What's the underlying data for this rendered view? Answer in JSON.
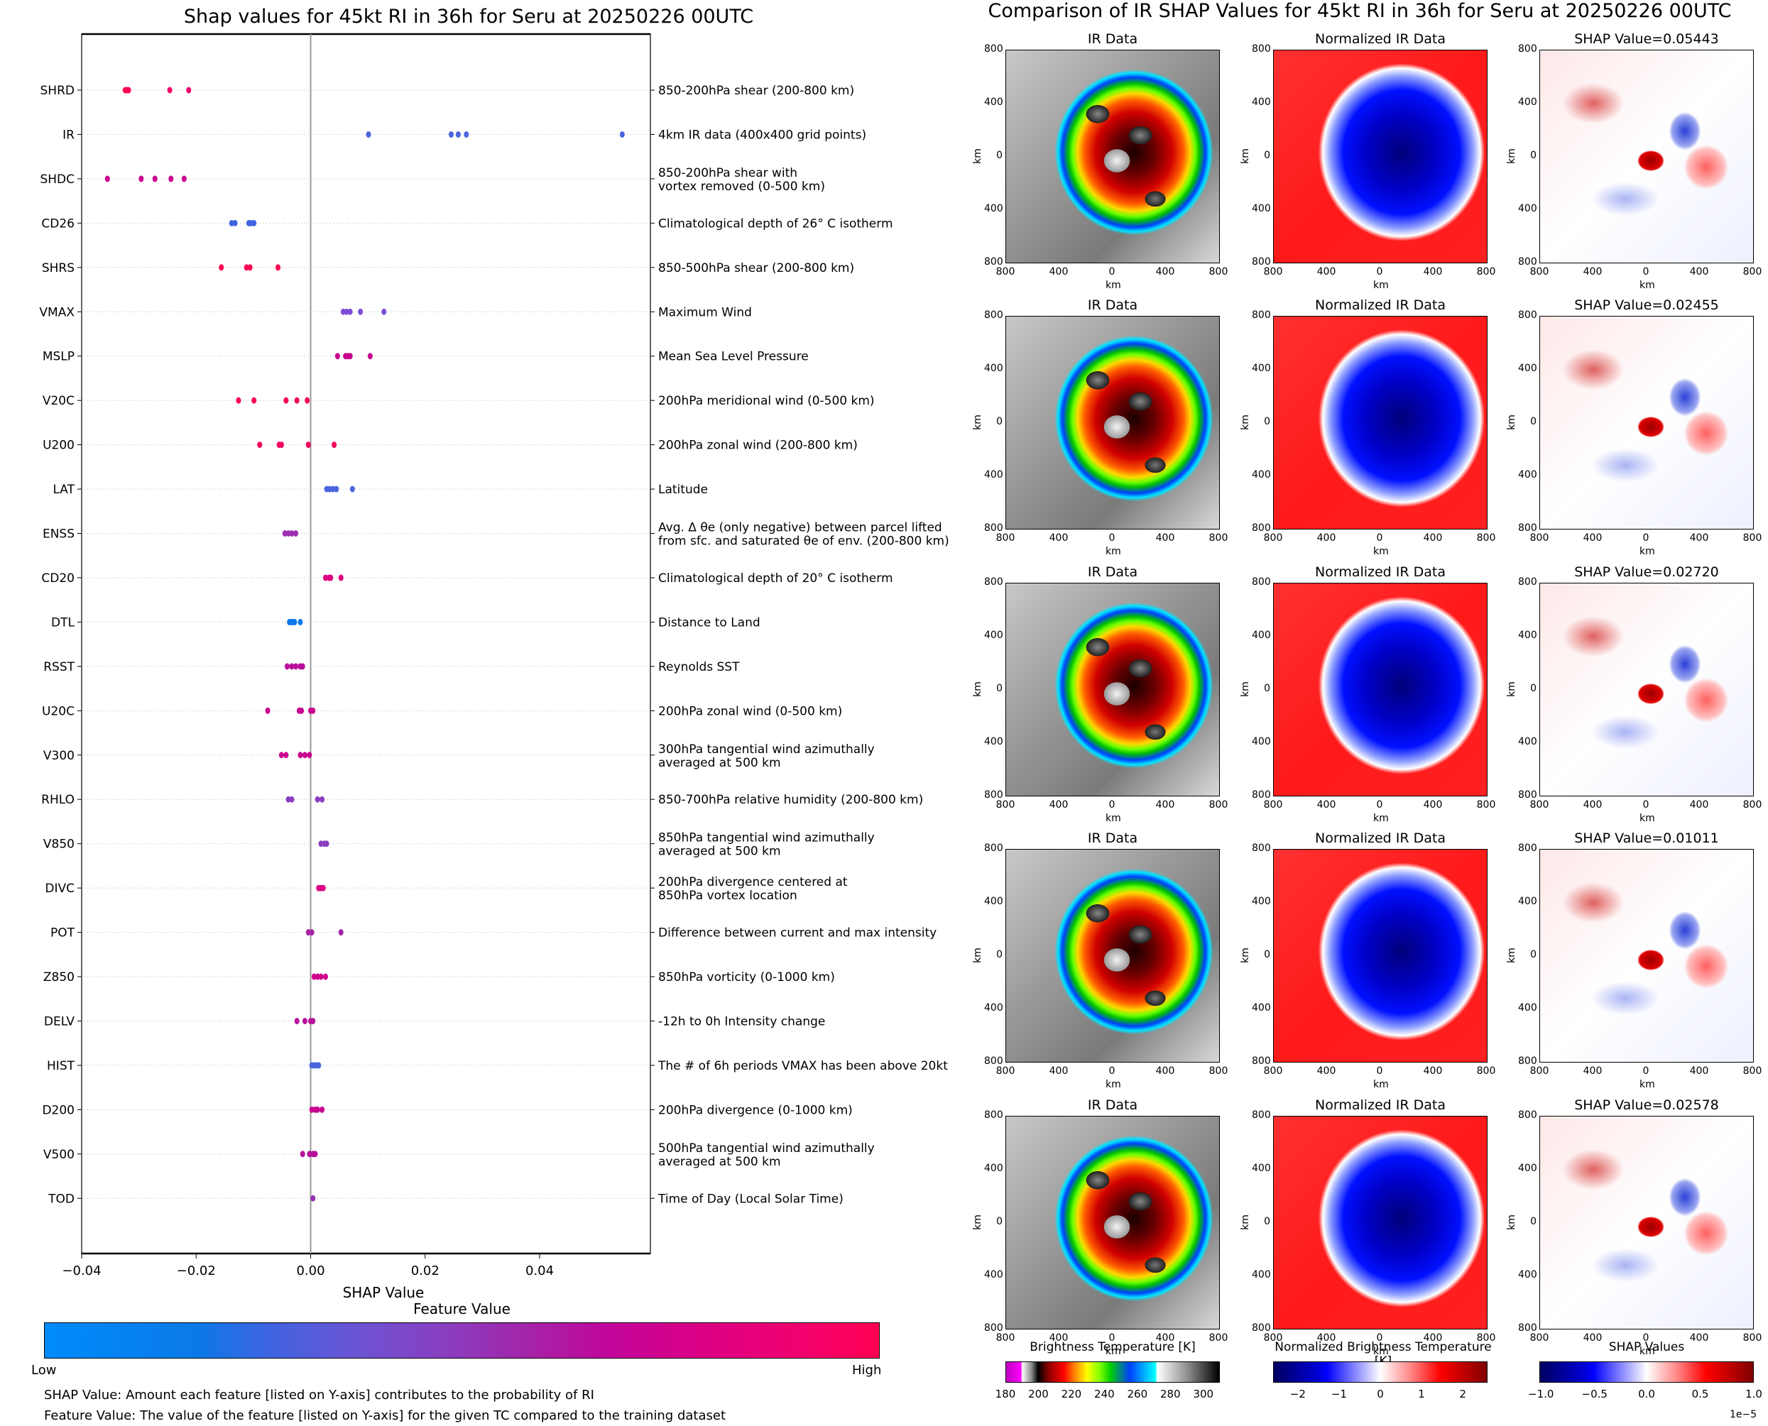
{
  "left": {
    "title": "Shap values for 45kt RI in 36h for Seru at 20250226 00UTC",
    "colorbar": {
      "title": "Feature Value",
      "low_label": "Low",
      "high_label": "High"
    },
    "notes": [
      "SHAP Value: Amount each feature [listed on Y-axis] contributes to the probability of RI",
      "Feature Value: The value of the feature [listed on Y-axis] for the given TC compared to the training dataset"
    ]
  },
  "chart_data": [
    {
      "type": "scatter",
      "title": "Shap values for 45kt RI in 36h for Seru at 20250226 00UTC",
      "xlabel": "SHAP Value",
      "ylabel": "",
      "xlim": [
        -0.04,
        0.0594
      ],
      "xticks": [
        -0.04,
        -0.02,
        0.0,
        0.02,
        0.04
      ],
      "xtick_labels": [
        "−0.04",
        "−0.02",
        "0.00",
        "0.02",
        "0.04"
      ],
      "grid": "horizontal dotted",
      "zero_line": 0.0,
      "colors": {
        "low": "#008bfb",
        "high": "#ff0052"
      },
      "features": [
        {
          "name": "SHRD",
          "desc": "850-200hPa shear (200-800 km)",
          "values": [
            -0.0324,
            -0.0321,
            -0.0318,
            -0.0246,
            -0.0213
          ],
          "colors": [
            "#ff0052",
            "#ff0052",
            "#ff0052",
            "#f5006a",
            "#f00070"
          ]
        },
        {
          "name": "IR",
          "desc": "4km IR data (400x400 grid points)",
          "values": [
            0.01011,
            0.02455,
            0.02578,
            0.0272,
            0.05443
          ],
          "colors": [
            "#4a64e0",
            "#4a64e0",
            "#4a64e0",
            "#4a64e0",
            "#4a64e0"
          ]
        },
        {
          "name": "SHDC",
          "desc": "850-200hPa shear with\nvortex removed (0-500 km)",
          "values": [
            -0.0355,
            -0.0296,
            -0.0272,
            -0.0244,
            -0.0221
          ],
          "colors": [
            "#c9048f",
            "#c9048f",
            "#c9048f",
            "#c9048f",
            "#c9048f"
          ]
        },
        {
          "name": "CD26",
          "desc": "Climatological depth of 26° C isotherm",
          "values": [
            -0.0138,
            -0.0132,
            -0.0108,
            -0.0104,
            -0.0099
          ],
          "colors": [
            "#3f63e0",
            "#3f63e0",
            "#3f63e0",
            "#3f63e0",
            "#3f63e0"
          ]
        },
        {
          "name": "SHRS",
          "desc": "850-500hPa shear (200-800 km)",
          "values": [
            -0.0156,
            -0.0112,
            -0.0106,
            -0.0057
          ],
          "colors": [
            "#ff0052",
            "#ff0052",
            "#ff0052",
            "#ff0052"
          ]
        },
        {
          "name": "VMAX",
          "desc": "Maximum Wind",
          "values": [
            0.0057,
            0.0063,
            0.0069,
            0.0087,
            0.0128
          ],
          "colors": [
            "#7a4fd6",
            "#7a4fd6",
            "#7a4fd6",
            "#7a4fd6",
            "#7a4fd6"
          ]
        },
        {
          "name": "MSLP",
          "desc": "Mean Sea Level Pressure",
          "values": [
            0.0047,
            0.0061,
            0.0065,
            0.0069,
            0.0104
          ],
          "colors": [
            "#c7008f",
            "#c7008f",
            "#c7008f",
            "#c7008f",
            "#c7008f"
          ]
        },
        {
          "name": "V20C",
          "desc": "200hPa meridional wind (0-500 km)",
          "values": [
            -0.0126,
            -0.0099,
            -0.0043,
            -0.0024,
            -0.0006
          ],
          "colors": [
            "#f5005c",
            "#f5005c",
            "#f5005c",
            "#f5005c",
            "#f5005c"
          ]
        },
        {
          "name": "U200",
          "desc": "200hPa zonal wind (200-800 km)",
          "values": [
            -0.0089,
            -0.0055,
            -0.0051,
            -0.0004,
            0.0041
          ],
          "colors": [
            "#f5005c",
            "#f5005c",
            "#f5005c",
            "#f5005c",
            "#f5005c"
          ]
        },
        {
          "name": "LAT",
          "desc": "Latitude",
          "values": [
            0.0028,
            0.0033,
            0.0039,
            0.0045,
            0.0073
          ],
          "colors": [
            "#4a64e0",
            "#4a64e0",
            "#4a64e0",
            "#4a64e0",
            "#4a64e0"
          ]
        },
        {
          "name": "ENSS",
          "desc": "Avg. Δ θe (only negative) between parcel lifted\nfrom sfc. and saturated θe of env. (200-800 km)",
          "values": [
            -0.0045,
            -0.0039,
            -0.0033,
            -0.0026
          ],
          "colors": [
            "#9b30b5",
            "#9b30b5",
            "#9b30b5",
            "#9b30b5"
          ]
        },
        {
          "name": "CD20",
          "desc": "Climatological depth of 20° C isotherm",
          "values": [
            0.0026,
            0.0032,
            0.0035,
            0.0053
          ],
          "colors": [
            "#e0007d",
            "#e0007d",
            "#e0007d",
            "#e0007d"
          ]
        },
        {
          "name": "DTL",
          "desc": "Distance to Land",
          "values": [
            -0.0037,
            -0.0033,
            -0.003,
            -0.0028,
            -0.0018
          ],
          "colors": [
            "#0a78ea",
            "#0a78ea",
            "#0a78ea",
            "#0a78ea",
            "#0a78ea"
          ]
        },
        {
          "name": "RSST",
          "desc": "Reynolds SST",
          "values": [
            -0.0041,
            -0.0033,
            -0.0026,
            -0.0018,
            -0.0014
          ],
          "colors": [
            "#b8109a",
            "#b8109a",
            "#b8109a",
            "#b8109a",
            "#b8109a"
          ]
        },
        {
          "name": "U20C",
          "desc": "200hPa zonal wind (0-500 km)",
          "values": [
            -0.0075,
            -0.002,
            -0.0016,
            0.0,
            0.0004
          ],
          "colors": [
            "#c9048f",
            "#c9048f",
            "#c9048f",
            "#c9048f",
            "#c9048f"
          ]
        },
        {
          "name": "V300",
          "desc": "300hPa tangential wind azimuthally\naveraged at 500 km",
          "values": [
            -0.0051,
            -0.0043,
            -0.0018,
            -0.001,
            -0.0002
          ],
          "colors": [
            "#c9048f",
            "#c9048f",
            "#c9048f",
            "#c9048f",
            "#c9048f"
          ]
        },
        {
          "name": "RHLO",
          "desc": "850-700hPa relative humidity (200-800 km)",
          "values": [
            -0.0039,
            -0.0033,
            0.0012,
            0.002
          ],
          "colors": [
            "#8a3ec0",
            "#8a3ec0",
            "#8a3ec0",
            "#8a3ec0"
          ]
        },
        {
          "name": "V850",
          "desc": "850hPa tangential wind azimuthally\naveraged at 500 km",
          "values": [
            0.0018,
            0.0024,
            0.0028
          ],
          "colors": [
            "#8a3ec0",
            "#8a3ec0",
            "#8a3ec0"
          ]
        },
        {
          "name": "DIVC",
          "desc": "200hPa divergence centered at\n850hPa vortex location",
          "values": [
            0.0014,
            0.0018,
            0.0022
          ],
          "colors": [
            "#dc0085",
            "#dc0085",
            "#dc0085"
          ]
        },
        {
          "name": "POT",
          "desc": "Difference between current and max intensity",
          "values": [
            -0.0004,
            0.0002,
            0.0053
          ],
          "colors": [
            "#a424a8",
            "#a424a8",
            "#a424a8"
          ]
        },
        {
          "name": "Z850",
          "desc": "850hPa vorticity (0-1000 km)",
          "values": [
            0.0006,
            0.0012,
            0.0018,
            0.0026
          ],
          "colors": [
            "#d0008c",
            "#d0008c",
            "#d0008c",
            "#d0008c"
          ]
        },
        {
          "name": "DELV",
          "desc": "-12h to 0h Intensity change",
          "values": [
            -0.0024,
            -0.001,
            0.0,
            0.0004
          ],
          "colors": [
            "#b8109a",
            "#b8109a",
            "#b8109a",
            "#b8109a"
          ]
        },
        {
          "name": "HIST",
          "desc": "The # of 6h periods VMAX has been above 20kt",
          "values": [
            0.0002,
            0.0006,
            0.001,
            0.0014
          ],
          "colors": [
            "#4a64e0",
            "#4a64e0",
            "#4a64e0",
            "#4a64e0"
          ]
        },
        {
          "name": "D200",
          "desc": "200hPa divergence (0-1000 km)",
          "values": [
            0.0002,
            0.0008,
            0.0012,
            0.002
          ],
          "colors": [
            "#c7008f",
            "#c7008f",
            "#c7008f",
            "#c7008f"
          ]
        },
        {
          "name": "V500",
          "desc": "500hPa tangential wind azimuthally\naveraged at 500 km",
          "values": [
            -0.0014,
            -0.0002,
            0.0004,
            0.0008
          ],
          "colors": [
            "#b8109a",
            "#b8109a",
            "#b8109a",
            "#b8109a"
          ]
        },
        {
          "name": "TOD",
          "desc": "Time of Day (Local Solar Time)",
          "values": [
            0.0004
          ],
          "colors": [
            "#9b30b5"
          ]
        }
      ]
    },
    {
      "type": "heatmap",
      "title": "Comparison of IR SHAP Values for 45kt RI in 36h for Seru at 20250226 00UTC",
      "xlabel": "km",
      "ylabel": "km",
      "xtick_labels": [
        "800",
        "400",
        "0",
        "400",
        "800"
      ],
      "ytick_labels": [
        "800",
        "400",
        "0",
        "400",
        "800"
      ],
      "rows": [
        {
          "ir_title": "IR Data",
          "norm_title": "Normalized IR Data",
          "shap_title": "SHAP Value=0.05443",
          "shap_value": 0.05443
        },
        {
          "ir_title": "IR Data",
          "norm_title": "Normalized IR Data",
          "shap_title": "SHAP Value=0.02455",
          "shap_value": 0.02455
        },
        {
          "ir_title": "IR Data",
          "norm_title": "Normalized IR Data",
          "shap_title": "SHAP Value=0.02720",
          "shap_value": 0.0272
        },
        {
          "ir_title": "IR Data",
          "norm_title": "Normalized IR Data",
          "shap_title": "SHAP Value=0.01011",
          "shap_value": 0.01011
        },
        {
          "ir_title": "IR Data",
          "norm_title": "Normalized IR Data",
          "shap_title": "SHAP Value=0.02578",
          "shap_value": 0.02578
        }
      ],
      "colorbars": [
        {
          "title": "Brightness Temperature [K]",
          "ticks": [
            "180",
            "200",
            "220",
            "240",
            "260",
            "280",
            "300"
          ],
          "range": [
            180,
            310
          ]
        },
        {
          "title": "Normalized Brightness Temperature [K]",
          "ticks": [
            "−2",
            "−1",
            "0",
            "1",
            "2"
          ],
          "range": [
            -2.6,
            2.6
          ]
        },
        {
          "title": "SHAP Values",
          "ticks": [
            "−1.0",
            "−0.5",
            "0.0",
            "0.5",
            "1.0"
          ],
          "range": [
            -1.0,
            1.0
          ],
          "offset_label": "1e−5"
        }
      ]
    }
  ]
}
